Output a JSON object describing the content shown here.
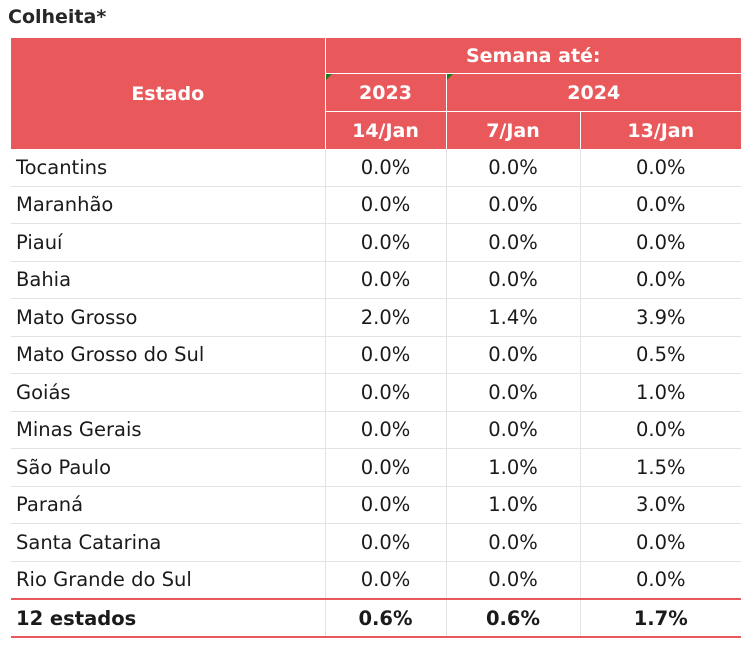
{
  "title": "Colheita*",
  "header": {
    "state_label": "Estado",
    "group_label": "Semana até:",
    "years": [
      "2023",
      "2024"
    ],
    "weeks": [
      "14/Jan",
      "7/Jan",
      "13/Jan"
    ]
  },
  "rows": [
    {
      "state": "Tocantins",
      "values": [
        "0.0%",
        "0.0%",
        "0.0%"
      ]
    },
    {
      "state": "Maranhão",
      "values": [
        "0.0%",
        "0.0%",
        "0.0%"
      ]
    },
    {
      "state": "Piauí",
      "values": [
        "0.0%",
        "0.0%",
        "0.0%"
      ]
    },
    {
      "state": "Bahia",
      "values": [
        "0.0%",
        "0.0%",
        "0.0%"
      ]
    },
    {
      "state": "Mato Grosso",
      "values": [
        "2.0%",
        "1.4%",
        "3.9%"
      ]
    },
    {
      "state": "Mato Grosso do Sul",
      "values": [
        "0.0%",
        "0.0%",
        "0.5%"
      ]
    },
    {
      "state": "Goiás",
      "values": [
        "0.0%",
        "0.0%",
        "1.0%"
      ]
    },
    {
      "state": "Minas Gerais",
      "values": [
        "0.0%",
        "0.0%",
        "0.0%"
      ]
    },
    {
      "state": "São Paulo",
      "values": [
        "0.0%",
        "1.0%",
        "1.5%"
      ]
    },
    {
      "state": "Paraná",
      "values": [
        "0.0%",
        "1.0%",
        "3.0%"
      ]
    },
    {
      "state": "Santa Catarina",
      "values": [
        "0.0%",
        "0.0%",
        "0.0%"
      ]
    },
    {
      "state": "Rio Grande do Sul",
      "values": [
        "0.0%",
        "0.0%",
        "0.0%"
      ]
    }
  ],
  "total": {
    "state": "12 estados",
    "values": [
      "0.6%",
      "0.6%",
      "1.7%"
    ]
  },
  "colors": {
    "header_bg": "#e9595c",
    "header_text": "#ffffff",
    "comment_marker": "#1f7a1f"
  }
}
